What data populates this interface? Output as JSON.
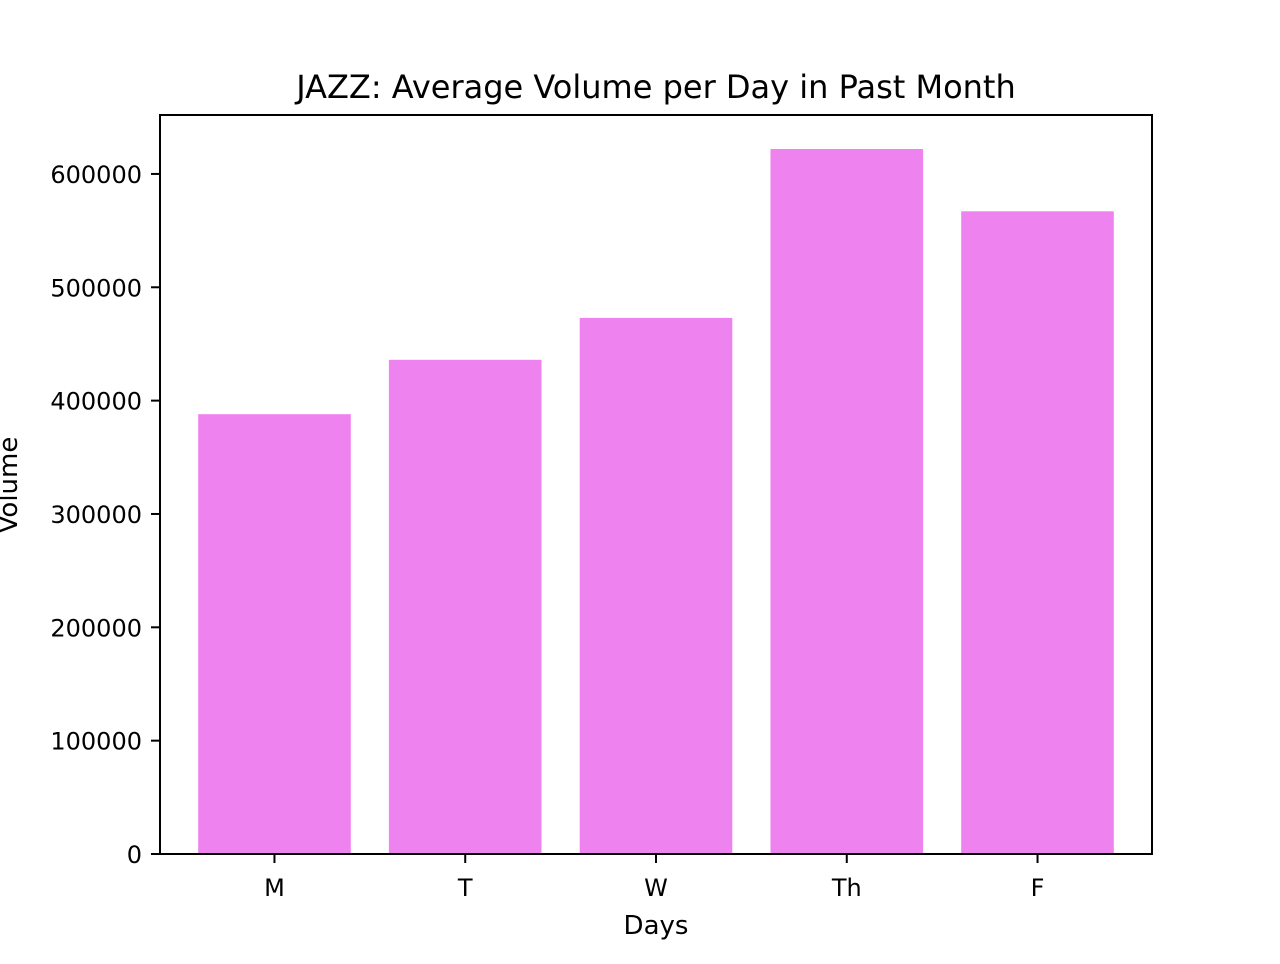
{
  "chart_data": {
    "type": "bar",
    "title": "JAZZ: Average Volume per Day in Past Month",
    "xlabel": "Days",
    "ylabel": "Volume",
    "categories": [
      "M",
      "T",
      "W",
      "Th",
      "F"
    ],
    "values": [
      388000,
      436000,
      473000,
      622000,
      567000
    ],
    "ylim": [
      0,
      652000
    ],
    "yticks": [
      0,
      100000,
      200000,
      300000,
      400000,
      500000,
      600000
    ],
    "ytick_labels": [
      "0",
      "100000",
      "200000",
      "300000",
      "400000",
      "500000",
      "600000"
    ],
    "bar_color": "#ee82ee",
    "grid": false,
    "legend": "none"
  }
}
